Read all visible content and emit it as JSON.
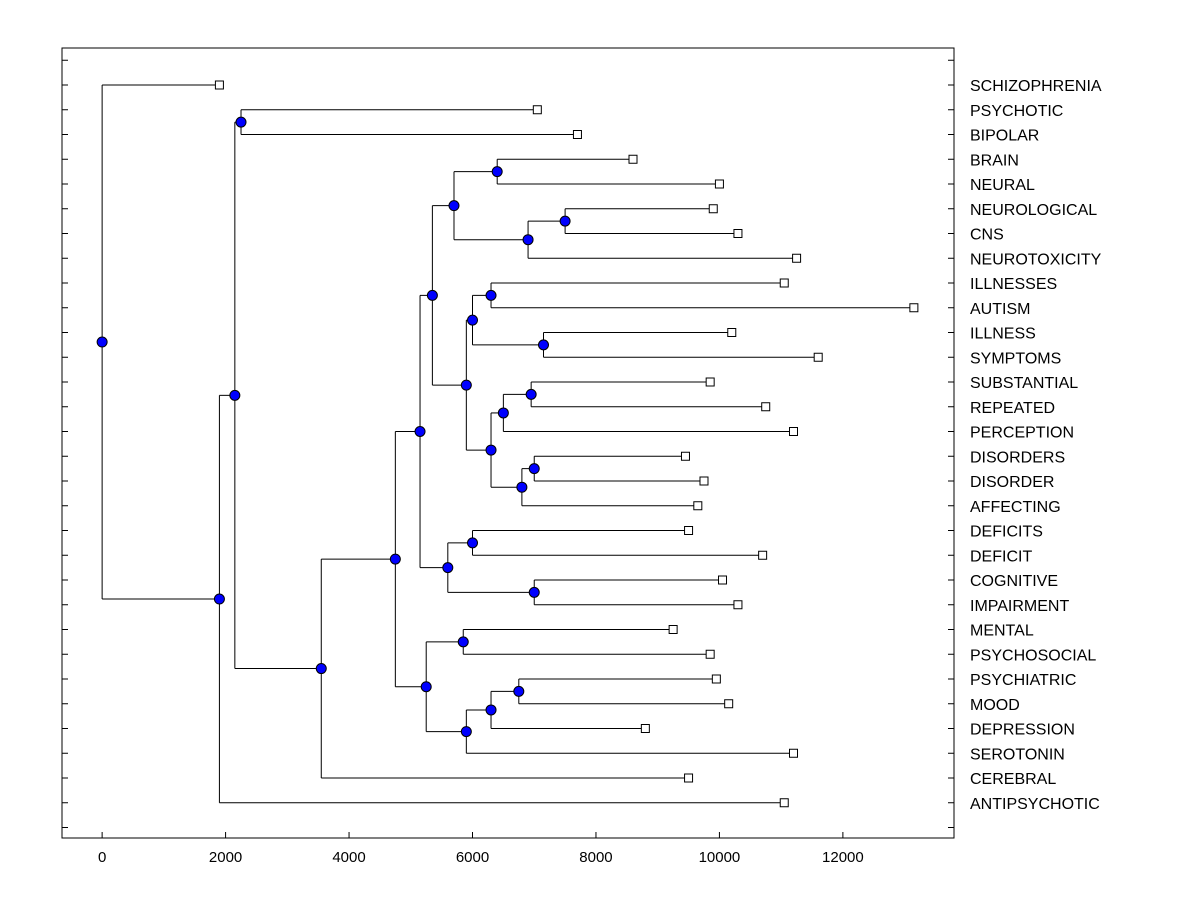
{
  "chart_data": {
    "type": "dendrogram",
    "title": "",
    "xlabel": "",
    "ylabel": "",
    "xlim": [
      -650,
      13800
    ],
    "x_ticks": [
      0,
      2000,
      4000,
      6000,
      8000,
      10000,
      12000
    ],
    "x_tick_labels": [
      "0",
      "2000",
      "4000",
      "6000",
      "8000",
      "10000",
      "12000"
    ],
    "grid": false,
    "legend": "none",
    "colors": {
      "node": "#0000ff",
      "line": "#000000",
      "leaf": "#ffffff"
    },
    "leaves": [
      {
        "label": "SCHIZOPHRENIA",
        "x": 1900
      },
      {
        "label": "PSYCHOTIC",
        "x": 7050
      },
      {
        "label": "BIPOLAR",
        "x": 7700
      },
      {
        "label": "BRAIN",
        "x": 8600
      },
      {
        "label": "NEURAL",
        "x": 10000
      },
      {
        "label": "NEUROLOGICAL",
        "x": 9900
      },
      {
        "label": "CNS",
        "x": 10300
      },
      {
        "label": "NEUROTOXICITY",
        "x": 11250
      },
      {
        "label": "ILLNESSES",
        "x": 11050
      },
      {
        "label": "AUTISM",
        "x": 13150
      },
      {
        "label": "ILLNESS",
        "x": 10200
      },
      {
        "label": "SYMPTOMS",
        "x": 11600
      },
      {
        "label": "SUBSTANTIAL",
        "x": 9850
      },
      {
        "label": "REPEATED",
        "x": 10750
      },
      {
        "label": "PERCEPTION",
        "x": 11200
      },
      {
        "label": "DISORDERS",
        "x": 9450
      },
      {
        "label": "DISORDER",
        "x": 9750
      },
      {
        "label": "AFFECTING",
        "x": 9650
      },
      {
        "label": "DEFICITS",
        "x": 9500
      },
      {
        "label": "DEFICIT",
        "x": 10700
      },
      {
        "label": "COGNITIVE",
        "x": 10050
      },
      {
        "label": "IMPAIRMENT",
        "x": 10300
      },
      {
        "label": "MENTAL",
        "x": 9250
      },
      {
        "label": "PSYCHOSOCIAL",
        "x": 9850
      },
      {
        "label": "PSYCHIATRIC",
        "x": 9950
      },
      {
        "label": "MOOD",
        "x": 10150
      },
      {
        "label": "DEPRESSION",
        "x": 8800
      },
      {
        "label": "SEROTONIN",
        "x": 11200
      },
      {
        "label": "CEREBRAL",
        "x": 9500
      },
      {
        "label": "ANTIPSYCHOTIC",
        "x": 11050
      }
    ],
    "merges": [
      {
        "id": "n1",
        "x": 2250,
        "children": [
          "PSYCHOTIC",
          "BIPOLAR"
        ]
      },
      {
        "id": "n2",
        "x": 6400,
        "children": [
          "BRAIN",
          "NEURAL"
        ]
      },
      {
        "id": "n3",
        "x": 7500,
        "children": [
          "NEUROLOGICAL",
          "CNS"
        ]
      },
      {
        "id": "n4",
        "x": 6900,
        "children": [
          "n3",
          "NEUROTOXICITY"
        ]
      },
      {
        "id": "n5",
        "x": 5700,
        "children": [
          "n2",
          "n4"
        ]
      },
      {
        "id": "n6",
        "x": 6300,
        "children": [
          "ILLNESSES",
          "AUTISM"
        ]
      },
      {
        "id": "n7",
        "x": 7150,
        "children": [
          "ILLNESS",
          "SYMPTOMS"
        ]
      },
      {
        "id": "n8",
        "x": 6000,
        "children": [
          "n6",
          "n7"
        ]
      },
      {
        "id": "n9",
        "x": 6950,
        "children": [
          "SUBSTANTIAL",
          "REPEATED"
        ]
      },
      {
        "id": "n10",
        "x": 6500,
        "children": [
          "n9",
          "PERCEPTION"
        ]
      },
      {
        "id": "n11",
        "x": 7000,
        "children": [
          "DISORDERS",
          "DISORDER"
        ]
      },
      {
        "id": "n12",
        "x": 6800,
        "children": [
          "n11",
          "AFFECTING"
        ]
      },
      {
        "id": "n13",
        "x": 6300,
        "children": [
          "n10",
          "n12"
        ]
      },
      {
        "id": "n14",
        "x": 5900,
        "children": [
          "n8",
          "n13"
        ]
      },
      {
        "id": "n15",
        "x": 5350,
        "children": [
          "n5",
          "n14"
        ]
      },
      {
        "id": "n16",
        "x": 6000,
        "children": [
          "DEFICITS",
          "DEFICIT"
        ]
      },
      {
        "id": "n17",
        "x": 7000,
        "children": [
          "COGNITIVE",
          "IMPAIRMENT"
        ]
      },
      {
        "id": "n18",
        "x": 5600,
        "children": [
          "n16",
          "n17"
        ]
      },
      {
        "id": "n19",
        "x": 5150,
        "children": [
          "n15",
          "n18"
        ]
      },
      {
        "id": "n20",
        "x": 5850,
        "children": [
          "MENTAL",
          "PSYCHOSOCIAL"
        ]
      },
      {
        "id": "n21",
        "x": 6750,
        "children": [
          "PSYCHIATRIC",
          "MOOD"
        ]
      },
      {
        "id": "n22",
        "x": 6300,
        "children": [
          "n21",
          "DEPRESSION"
        ]
      },
      {
        "id": "n23",
        "x": 5900,
        "children": [
          "n22",
          "SEROTONIN"
        ]
      },
      {
        "id": "n24",
        "x": 5250,
        "children": [
          "n20",
          "n23"
        ]
      },
      {
        "id": "n25",
        "x": 4750,
        "children": [
          "n19",
          "n24"
        ]
      },
      {
        "id": "n26",
        "x": 3550,
        "children": [
          "n25",
          "CEREBRAL"
        ]
      },
      {
        "id": "n27",
        "x": 2150,
        "children": [
          "n1",
          "n26"
        ]
      },
      {
        "id": "n28",
        "x": 1900,
        "children": [
          "n27",
          "ANTIPSYCHOTIC"
        ]
      },
      {
        "id": "root",
        "x": 0,
        "children": [
          "SCHIZOPHRENIA",
          "n28"
        ]
      }
    ]
  }
}
